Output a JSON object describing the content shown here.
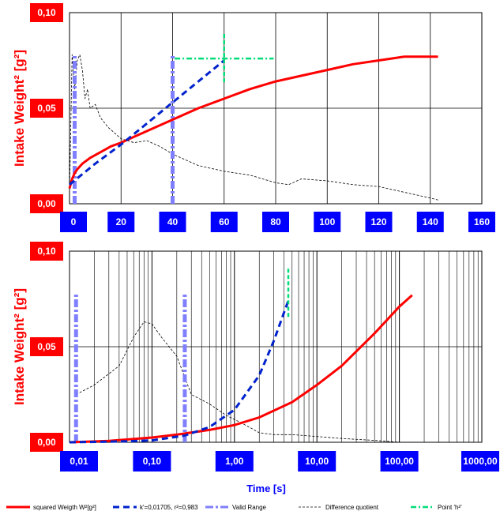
{
  "colors": {
    "squared": "#ff0000",
    "fit": "#0022cc",
    "valid": "#7f7fff",
    "diff": "#000000",
    "point": "#00dd77",
    "tick_box": "#0000ff",
    "y_box": "#ff0000"
  },
  "legend": [
    {
      "key": "squared",
      "label": "squared Weigth W²[g²]",
      "style": "solid",
      "color": "#ff0000"
    },
    {
      "key": "fit",
      "label": "k'=0,01705, r²=0,983",
      "style": "dashed",
      "color": "#0022cc"
    },
    {
      "key": "valid",
      "label": "Valid Range",
      "style": "dashdot-thick",
      "color": "#7f7fff"
    },
    {
      "key": "diff",
      "label": "Difference quotient",
      "style": "dashdot-thin",
      "color": "#000000"
    },
    {
      "key": "point",
      "label": "Point 'h²'",
      "style": "dashdot",
      "color": "#00dd77"
    }
  ],
  "chart_data": [
    {
      "type": "line",
      "xscale": "linear",
      "xlim": [
        0,
        160
      ],
      "ylim": [
        0,
        0.1
      ],
      "ylabel": "Intake Weight² [g²]",
      "xlabel": "",
      "grid": true,
      "x_ticks": [
        "0",
        "20",
        "40",
        "60",
        "80",
        "100",
        "120",
        "140",
        "160"
      ],
      "x_tick_values": [
        0,
        20,
        40,
        60,
        80,
        100,
        120,
        140,
        160
      ],
      "y_ticks": [
        "0,00",
        "0,05",
        "0,10"
      ],
      "y_tick_values": [
        0,
        0.05,
        0.1
      ],
      "series": [
        {
          "key": "squared",
          "x": [
            0,
            1,
            2,
            3,
            5,
            8,
            12,
            16,
            20,
            25,
            30,
            35,
            40,
            45,
            50,
            60,
            70,
            80,
            90,
            100,
            110,
            120,
            125,
            130,
            135,
            140,
            143
          ],
          "y": [
            0.008,
            0.013,
            0.016,
            0.018,
            0.021,
            0.024,
            0.027,
            0.03,
            0.032,
            0.035,
            0.038,
            0.041,
            0.044,
            0.047,
            0.05,
            0.055,
            0.06,
            0.064,
            0.067,
            0.07,
            0.073,
            0.075,
            0.076,
            0.077,
            0.077,
            0.077,
            0.077
          ]
        },
        {
          "key": "fit",
          "x": [
            0,
            10,
            20,
            30,
            40,
            50,
            60
          ],
          "y": [
            0.01,
            0.021,
            0.031,
            0.042,
            0.053,
            0.064,
            0.075
          ]
        },
        {
          "key": "diff",
          "x": [
            0,
            1,
            2,
            3,
            4,
            5,
            6,
            7,
            8,
            10,
            12,
            15,
            20,
            25,
            30,
            35,
            40,
            50,
            60,
            70,
            80,
            85,
            90,
            100,
            110,
            120,
            130,
            140,
            143
          ],
          "y": [
            0.005,
            0.078,
            0.06,
            0.075,
            0.078,
            0.07,
            0.055,
            0.06,
            0.05,
            0.052,
            0.045,
            0.04,
            0.034,
            0.032,
            0.033,
            0.03,
            0.026,
            0.02,
            0.017,
            0.015,
            0.011,
            0.01,
            0.013,
            0.012,
            0.01,
            0.009,
            0.006,
            0.003,
            0.002
          ]
        },
        {
          "key": "valid",
          "x": [
            2,
            2,
            40,
            40
          ],
          "y": [
            0,
            0.078,
            0,
            0.078
          ],
          "pairs": [
            [
              2,
              0,
              0.078
            ],
            [
              40,
              0,
              0.078
            ]
          ]
        },
        {
          "key": "point",
          "x": [
            60
          ],
          "y": [
            0.076
          ],
          "size_x": 12,
          "size_y": 0.008
        }
      ]
    },
    {
      "type": "line",
      "xscale": "log",
      "xlim": [
        0.01,
        1000
      ],
      "ylim": [
        0,
        0.1
      ],
      "ylabel": "Intake Weight² [g²]",
      "xlabel": "Time [s]",
      "grid": true,
      "x_ticks": [
        "0,01",
        "0,10",
        "1,00",
        "10,00",
        "100,00",
        "1000,00"
      ],
      "x_tick_values": [
        0.01,
        0.1,
        1,
        10,
        100,
        1000
      ],
      "y_ticks": [
        "0,00",
        "0,05",
        "0,10"
      ],
      "y_tick_values": [
        0,
        0.05,
        0.1
      ],
      "series": [
        {
          "key": "squared",
          "x": [
            0.01,
            0.03,
            0.1,
            0.2,
            0.5,
            1,
            2,
            5,
            10,
            20,
            50,
            100,
            143
          ],
          "y": [
            0.0,
            0.0007,
            0.0025,
            0.004,
            0.0065,
            0.009,
            0.013,
            0.021,
            0.03,
            0.04,
            0.057,
            0.071,
            0.077
          ]
        },
        {
          "key": "fit",
          "x": [
            0.01,
            0.05,
            0.1,
            0.25,
            0.5,
            1,
            2,
            3,
            4,
            4.5
          ],
          "y": [
            0.0,
            0.0005,
            0.001,
            0.0035,
            0.008,
            0.017,
            0.035,
            0.053,
            0.068,
            0.074
          ]
        },
        {
          "key": "diff",
          "x": [
            0.012,
            0.02,
            0.04,
            0.06,
            0.08,
            0.1,
            0.13,
            0.2,
            0.3,
            0.5,
            0.8,
            1,
            1.5,
            2,
            3,
            5,
            10,
            20,
            50,
            100
          ],
          "y": [
            0.025,
            0.03,
            0.04,
            0.055,
            0.063,
            0.062,
            0.055,
            0.045,
            0.025,
            0.02,
            0.014,
            0.012,
            0.008,
            0.005,
            0.004,
            0.004,
            0.003,
            0.002,
            0.001,
            0.0
          ]
        },
        {
          "key": "valid",
          "pairs": [
            [
              0.012,
              0,
              0.078
            ],
            [
              0.25,
              0,
              0.078
            ]
          ]
        },
        {
          "key": "point",
          "x": [
            4.5
          ],
          "y": [
            0.078
          ],
          "size_x": 0,
          "size_y": 0.008
        }
      ]
    }
  ]
}
